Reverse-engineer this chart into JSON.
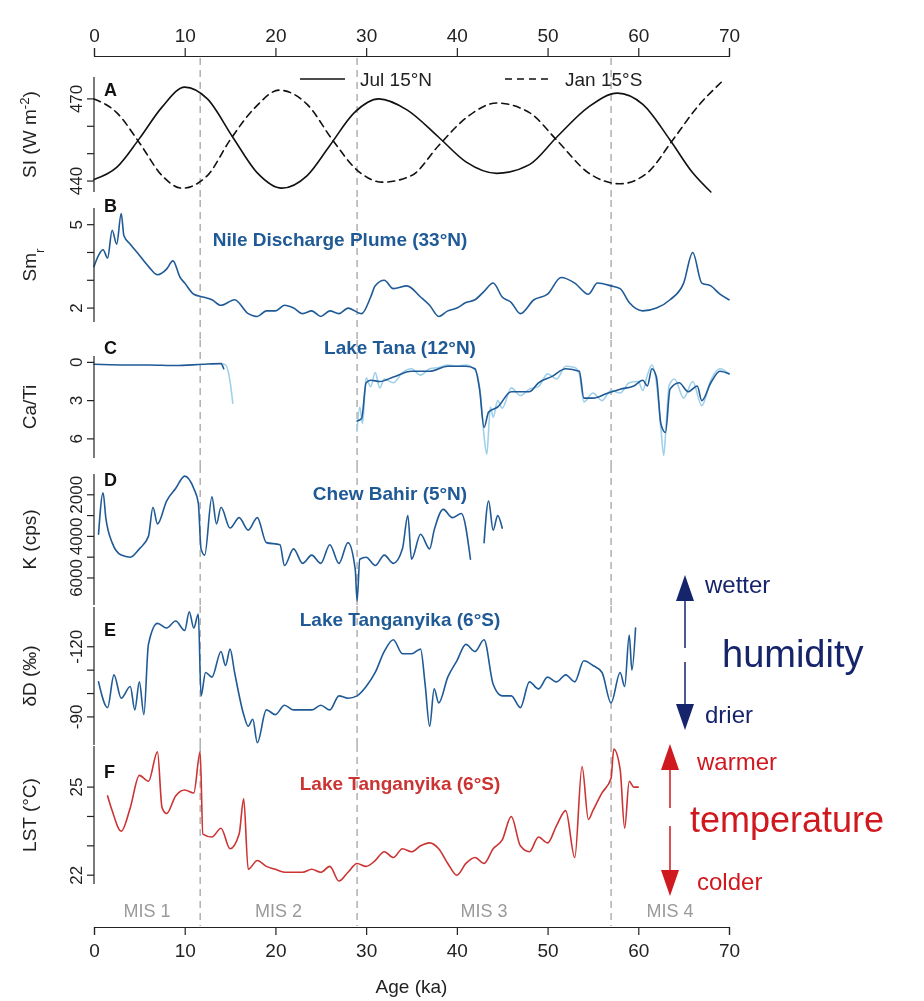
{
  "chart_data": [
    {
      "type": "line",
      "title": "A",
      "ylabel": "SI (W m$^{-2}$)",
      "xlim": [
        0,
        70
      ],
      "x2lim": [
        0,
        70
      ],
      "x2ticks": [
        0,
        10,
        20,
        30,
        40,
        50,
        60,
        70
      ],
      "ylim": [
        436,
        478
      ],
      "yticks": [
        440,
        {
          "value": 450,
          "label": null
        },
        {
          "value": 460,
          "label": null
        },
        470
      ],
      "tick_labels": "y",
      "legend": "top",
      "ref_lines": [
        {
          "axis": "x",
          "value": 11.7,
          "line_style": "dashed",
          "color": "#888888"
        },
        {
          "axis": "x",
          "value": 29,
          "line_style": "dashed",
          "color": "#888888"
        },
        {
          "axis": "x",
          "value": 57,
          "line_style": "dashed",
          "color": "#888888"
        }
      ],
      "series": [
        {
          "name": "Jul 15°N",
          "color": "#111111",
          "line_style": "solid",
          "x": [
            0,
            2.5,
            5,
            7.5,
            10,
            12.5,
            15.3,
            18,
            20.7,
            23.5,
            26,
            28.7,
            31.4,
            34.5,
            38,
            41,
            44.4,
            48,
            51,
            54.5,
            57.7,
            60.5,
            63.5,
            66,
            68
          ],
          "values": [
            440.6,
            445,
            455.5,
            467,
            474.3,
            470,
            456,
            443,
            437.4,
            442,
            453,
            465,
            470,
            466,
            456,
            447,
            442.8,
            446,
            456,
            467,
            472.1,
            468,
            455,
            443,
            436
          ]
        },
        {
          "name": "Jan 15°S",
          "color": "#111111",
          "line_style": "dashed",
          "x": [
            0,
            2.5,
            5,
            7.5,
            9.7,
            12.5,
            15,
            17.8,
            20.4,
            23.5,
            26.3,
            29,
            31.8,
            35,
            38,
            41,
            44.4,
            48,
            51,
            54.5,
            58,
            61,
            63.8,
            66.5,
            69.3
          ],
          "values": [
            470,
            465,
            454,
            442,
            437.4,
            442,
            455,
            467,
            473.2,
            468,
            455,
            444,
            439.6,
            442,
            453,
            463,
            468.5,
            465,
            455,
            443,
            439,
            443,
            455,
            467,
            476.6
          ]
        }
      ]
    },
    {
      "type": "line",
      "title": "B",
      "subtitle": "Nile Discharge Plume (33°N)",
      "ylabel": "Sm$_{r}$",
      "xlim": [
        0,
        70
      ],
      "ylim": [
        1.5,
        5.6
      ],
      "yticks": [
        2,
        {
          "value": 3,
          "label": null
        },
        {
          "value": 4,
          "label": null
        },
        5
      ],
      "tick_labels": "y",
      "ref_lines": [
        {
          "axis": "x",
          "value": 11.7,
          "line_style": "dashed",
          "color": "#888888"
        },
        {
          "axis": "x",
          "value": 29,
          "line_style": "dashed",
          "color": "#888888"
        },
        {
          "axis": "x",
          "value": 57,
          "line_style": "dashed",
          "color": "#888888"
        }
      ],
      "series": [
        {
          "color": "#1f5a96",
          "x": [
            0,
            0.5,
            1,
            1.5,
            2,
            2.5,
            3,
            3.3,
            4,
            5,
            6,
            7,
            8,
            8.7,
            9.5,
            10,
            11,
            12,
            13,
            14,
            15.5,
            17,
            18,
            19,
            20,
            21,
            22,
            23,
            24,
            25,
            26,
            27,
            28,
            29.5,
            30.5,
            31,
            32,
            33,
            34.5,
            36,
            37,
            38,
            39,
            40,
            41,
            42,
            43,
            44,
            45,
            46,
            47,
            48.5,
            50,
            51.5,
            53,
            54.5,
            55.5,
            57,
            58,
            59,
            60.5,
            62,
            63.5,
            65,
            66,
            67,
            68,
            69,
            70
          ],
          "values": [
            3.5,
            3.9,
            4.1,
            3.8,
            4.8,
            4.3,
            5.4,
            4.6,
            4.3,
            3.9,
            3.5,
            3.2,
            3.4,
            3.7,
            3.1,
            2.9,
            2.5,
            2.4,
            2.3,
            2.1,
            2.3,
            1.8,
            1.7,
            1.9,
            1.9,
            2.1,
            2.0,
            1.8,
            1.9,
            1.7,
            1.9,
            1.8,
            2.0,
            1.8,
            2.4,
            2.8,
            3.0,
            2.7,
            2.8,
            2.4,
            2.1,
            1.7,
            1.9,
            2.0,
            2.2,
            2.3,
            2.6,
            2.9,
            2.4,
            2.2,
            1.8,
            2.3,
            2.5,
            3.1,
            2.9,
            2.5,
            2.9,
            2.8,
            2.7,
            2.2,
            1.9,
            2.0,
            2.3,
            2.9,
            4.0,
            2.9,
            2.8,
            2.5,
            2.3
          ]
        }
      ]
    },
    {
      "type": "line",
      "title": "C",
      "subtitle": "Lake Tana (12°N)",
      "ylabel": "Ca/Ti",
      "xlim": [
        0,
        70
      ],
      "ylim": [
        7.5,
        -0.5
      ],
      "yticks": [
        0,
        3,
        6
      ],
      "tick_labels": "y",
      "ref_lines": [
        {
          "axis": "x",
          "value": 11.7,
          "line_style": "dashed",
          "color": "#888888"
        },
        {
          "axis": "x",
          "value": 29,
          "line_style": "dashed",
          "color": "#888888"
        },
        {
          "axis": "x",
          "value": 57,
          "line_style": "dashed",
          "color": "#888888"
        }
      ],
      "series": [
        {
          "color": "#9fd0ea",
          "x": [
            14,
            14.5,
            15,
            15.3,
            22,
            29,
            29.3,
            29.6,
            30,
            30.5,
            31,
            31.5,
            32,
            33,
            34,
            35,
            36,
            37,
            38,
            39,
            40,
            41,
            42,
            42.6,
            43,
            43.3,
            43.7,
            44,
            44.5,
            45,
            46,
            47,
            48,
            49,
            50,
            51,
            52,
            53,
            53.5,
            54,
            55,
            56,
            57,
            58,
            59,
            60,
            60.5,
            61,
            61.5,
            62,
            62.5,
            62.8,
            63.1,
            63.4,
            64,
            65,
            66,
            67,
            68,
            69,
            70
          ],
          "values": [
            0.1,
            0.2,
            1.5,
            3.2,
            null,
            5.4,
            3.5,
            4.8,
            1.2,
            1.9,
            0.8,
            2.0,
            1.3,
            1.6,
            0.8,
            0.5,
            1.0,
            0.5,
            0.4,
            0.2,
            0.3,
            0.2,
            0.6,
            2.5,
            5.8,
            7.2,
            3.5,
            4.3,
            3.0,
            3.6,
            2.0,
            2.6,
            2.1,
            1.9,
            0.9,
            1.3,
            0.3,
            0.4,
            0.9,
            3.1,
            2.4,
            3.0,
            2.2,
            2.4,
            1.6,
            1.5,
            2.2,
            1.0,
            0.2,
            1.6,
            5.2,
            7.3,
            4.6,
            1.8,
            1.3,
            2.8,
            1.5,
            3.4,
            1.4,
            0.5,
            0.9
          ]
        },
        {
          "color": "#1f5a96",
          "x": [
            0,
            3,
            6,
            9,
            12,
            14,
            14.3,
            22,
            29,
            29.5,
            30,
            30.5,
            31.5,
            33,
            35,
            37,
            39,
            41,
            42,
            42.5,
            43,
            43.5,
            44.5,
            46,
            48,
            49,
            50.5,
            52,
            53.5,
            54,
            55,
            56.5,
            58,
            59.5,
            60.5,
            61,
            61.5,
            62,
            62.5,
            63,
            63.5,
            64.5,
            65.5,
            66.5,
            67,
            68,
            69,
            70
          ],
          "values": [
            0.15,
            0.2,
            0.2,
            0.25,
            0.15,
            0.1,
            0.5,
            null,
            4.6,
            4.4,
            1.6,
            1.4,
            1.5,
            1.15,
            0.7,
            0.7,
            0.3,
            0.3,
            0.5,
            2.1,
            5.1,
            3.9,
            3.5,
            2.3,
            2.3,
            1.6,
            1.1,
            0.5,
            0.7,
            2.8,
            2.8,
            2.45,
            2.1,
            1.85,
            1.4,
            1.85,
            0.5,
            1.15,
            4.85,
            5.5,
            2.1,
            1.6,
            2.3,
            1.85,
            3.0,
            1.6,
            0.7,
            0.9
          ]
        }
      ]
    },
    {
      "type": "line",
      "title": "D",
      "subtitle": "Chew Bahir (5°N)",
      "ylabel": "K (cps)",
      "xlim": [
        0,
        70
      ],
      "ylim": [
        7300,
        1000
      ],
      "yticks": [
        2000,
        {
          "value": 3000,
          "label": null
        },
        4000,
        {
          "value": 5000,
          "label": null
        },
        6000
      ],
      "tick_labels": "y",
      "ref_lines": [
        {
          "axis": "x",
          "value": 11.7,
          "line_style": "dashed",
          "color": "#888888"
        },
        {
          "axis": "x",
          "value": 29,
          "line_style": "dashed",
          "color": "#888888"
        },
        {
          "axis": "x",
          "value": 57,
          "line_style": "dashed",
          "color": "#888888"
        }
      ],
      "series": [
        {
          "color": "#1f5a96",
          "x": [
            0.5,
            1,
            1.3,
            2,
            3,
            4,
            5,
            6,
            6.5,
            7,
            8,
            9,
            10,
            11,
            11.5,
            11.8,
            12.2,
            13,
            13.5,
            14,
            15,
            16,
            17,
            18,
            19,
            20.5,
            21,
            22,
            23,
            24,
            25,
            26,
            27,
            28,
            28.8,
            29,
            29.3,
            30,
            31,
            32,
            33,
            34,
            34.6,
            35,
            36,
            37,
            37.5,
            38.5,
            39.5,
            40.5,
            41.5,
            42,
            43,
            43.5,
            44,
            44.5,
            45
          ],
          "values": [
            3900,
            1900,
            3100,
            4300,
            4900,
            5000,
            4600,
            4000,
            2600,
            3400,
            2300,
            1700,
            1100,
            1700,
            2400,
            4600,
            4900,
            2100,
            3400,
            2600,
            3600,
            3100,
            3700,
            3100,
            4300,
            4400,
            5400,
            4600,
            5300,
            4900,
            5300,
            4400,
            5300,
            4300,
            5600,
            7100,
            5100,
            5000,
            5400,
            4900,
            5300,
            4600,
            3000,
            5100,
            3900,
            4600,
            3700,
            2700,
            3100,
            2900,
            5100,
            null,
            4300,
            2300,
            3700,
            3000,
            3600
          ]
        }
      ]
    },
    {
      "type": "line",
      "title": "E",
      "subtitle": "Lake Tanganyika (6°S)",
      "ylabel": "δD (‰)",
      "xlim": [
        0,
        70
      ],
      "ylim": [
        -78,
        -137
      ],
      "yticks": [
        -120,
        {
          "value": -110,
          "label": null
        },
        {
          "value": -100,
          "label": null
        },
        -90
      ],
      "tick_labels": "y",
      "annotations": [
        "wetter",
        "humidity",
        "drier"
      ],
      "ref_lines": [
        {
          "axis": "x",
          "value": 11.7,
          "line_style": "dashed",
          "color": "#888888"
        },
        {
          "axis": "x",
          "value": 29,
          "line_style": "dashed",
          "color": "#888888"
        },
        {
          "axis": "x",
          "value": 57,
          "line_style": "dashed",
          "color": "#888888"
        }
      ],
      "series": [
        {
          "color": "#1f5a96",
          "x": [
            0.5,
            1.5,
            2.2,
            3,
            4,
            4.5,
            5,
            5.5,
            6,
            7,
            8,
            9,
            10,
            10.5,
            11,
            11.5,
            11.8,
            12.3,
            13,
            14,
            14.5,
            15,
            15.5,
            16.5,
            17,
            17.5,
            18,
            19,
            20,
            21,
            22,
            23,
            24,
            25,
            26,
            27,
            28,
            29,
            30,
            31,
            32,
            33,
            34,
            35,
            36,
            36.5,
            37,
            37.5,
            38,
            39,
            40,
            41,
            42,
            43,
            44,
            45,
            46,
            47,
            48,
            49,
            50,
            51,
            52,
            53,
            54,
            55,
            56,
            57,
            58,
            58.5,
            59,
            59.3,
            59.7
          ],
          "values": [
            -105,
            -94,
            -108,
            -98,
            -103,
            -93,
            -105,
            -91,
            -121,
            -130,
            -128,
            -131,
            -127,
            -135,
            -128,
            -134,
            -99,
            -109,
            -107,
            -118,
            -112,
            -119,
            -109,
            -91,
            -86,
            -89,
            -79,
            -93,
            -91,
            -95,
            -93,
            -93,
            -93,
            -95,
            -93,
            -99,
            -98,
            -99,
            -103,
            -109,
            -118,
            -123,
            -117,
            -117,
            -119,
            -104,
            -86,
            -102,
            -96,
            -107,
            -114,
            -121,
            -118,
            -123,
            -104,
            -99,
            -99,
            -94,
            -105,
            -102,
            -107,
            -105,
            -108,
            -105,
            -114,
            -112,
            -109,
            -96,
            -109,
            -103,
            -125,
            -110,
            -128
          ]
        }
      ]
    },
    {
      "type": "line",
      "title": "F",
      "subtitle": "Lake Tanganyika (6°S)",
      "ylabel": "LST (°C)",
      "xlabel": "Age (ka)",
      "xlim": [
        0,
        70
      ],
      "xticks": [
        0,
        10,
        20,
        30,
        40,
        50,
        60,
        70
      ],
      "ylim": [
        21.7,
        26.4
      ],
      "yticks": [
        22,
        {
          "value": 23,
          "label": null
        },
        {
          "value": 24,
          "label": null
        },
        25
      ],
      "annotations": [
        "warmer",
        "temperature",
        "colder",
        "MIS 1",
        "MIS 2",
        "MIS 3",
        "MIS 4"
      ],
      "ref_lines": [
        {
          "axis": "x",
          "value": 11.7,
          "line_style": "dashed",
          "color": "#888888"
        },
        {
          "axis": "x",
          "value": 29,
          "line_style": "dashed",
          "color": "#888888"
        },
        {
          "axis": "x",
          "value": 57,
          "line_style": "dashed",
          "color": "#888888"
        }
      ],
      "series": [
        {
          "color": "#cc3333",
          "x": [
            1.5,
            2,
            3,
            4,
            5,
            6,
            7,
            7.5,
            8,
            9,
            10,
            11,
            11.7,
            12,
            13,
            14,
            15,
            16,
            16.5,
            17,
            18,
            19,
            20,
            21,
            22,
            23,
            24,
            25,
            26,
            27,
            28,
            29,
            30,
            31,
            32,
            33,
            34,
            35,
            36,
            37,
            38,
            39,
            40,
            41,
            42,
            43,
            44,
            45,
            46,
            47,
            48,
            49,
            50,
            51,
            52,
            53,
            53.8,
            54.5,
            55,
            56,
            57,
            57.3,
            58,
            58.5,
            59,
            59.5,
            60
          ],
          "values": [
            24.7,
            24.2,
            23.5,
            24.3,
            25.4,
            25.2,
            26.2,
            24.3,
            24.1,
            24.7,
            24.9,
            24.8,
            26.2,
            23.4,
            23.3,
            23.6,
            22.9,
            23.4,
            24.6,
            22.2,
            22.5,
            22.3,
            22.2,
            22.1,
            22.1,
            22.1,
            22.2,
            22.1,
            22.3,
            21.8,
            22.1,
            22.4,
            22.3,
            22.5,
            22.8,
            22.6,
            22.9,
            22.8,
            23.0,
            23.1,
            22.9,
            22.4,
            22.0,
            22.4,
            22.6,
            22.4,
            22.9,
            23.2,
            24.0,
            23.0,
            22.8,
            23.3,
            23.1,
            23.7,
            24.2,
            22.6,
            25.7,
            23.9,
            24.2,
            24.8,
            25.3,
            26.3,
            25.6,
            23.6,
            25.2,
            25.0,
            25.0
          ]
        }
      ]
    }
  ]
}
